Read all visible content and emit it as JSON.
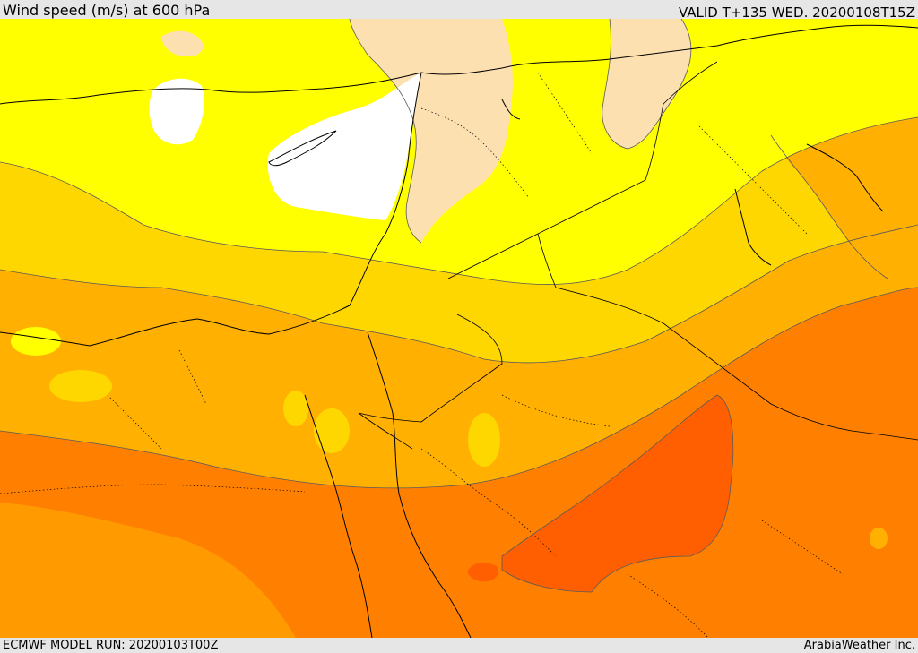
{
  "header": {
    "title": "Wind speed (m/s) at 600 hPa",
    "valid": "VALID T+135 WED. 20200108T15Z"
  },
  "footer": {
    "model_run": "ECMWF MODEL RUN: 20200103T00Z",
    "credit": "ArabiaWeather Inc."
  },
  "colors": {
    "calm": "#ffffff",
    "band_1": "#fde0b0",
    "band_2": "#ffff00",
    "band_3": "#ffd700",
    "band_4": "#ffb300",
    "band_5": "#ff9a00",
    "band_6": "#ff7f00",
    "band_7": "#ff5f00"
  }
}
